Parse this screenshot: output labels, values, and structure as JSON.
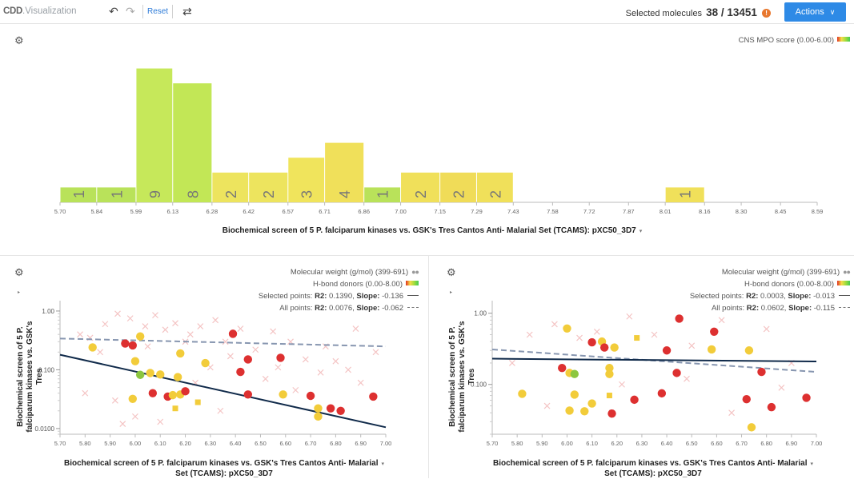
{
  "app": {
    "logo_bold": "CDD",
    "logo_rest": ".Visualization",
    "reset_label": "Reset",
    "selected_label": "Selected molecules",
    "selected_count": "38 / 13451",
    "warning_icon": "!",
    "actions_label": "Actions",
    "actions_chevron": "∨"
  },
  "icons": {
    "undo": "↶",
    "redo": "↷",
    "swap": "⇄",
    "gear": "⚙",
    "expand": "↗",
    "caret": "▾",
    "right_caret": "▸"
  },
  "histogram": {
    "legend": "CNS MPO score (0.00-6.00)",
    "x_title": "Biochemical screen of 5 P. falciparum kinases vs. GSK's Tres Cantos Anti- Malarial Set (TCAMS): pXC50_3D7"
  },
  "scatter_left": {
    "legend_mw": "Molecular weight (g/mol) (399-691)",
    "legend_hbd": "H-bond donors (0.00-8.00)",
    "legend_selected_prefix": "Selected points:",
    "legend_selected_r2": "R2:",
    "legend_selected_r2_val": "0.1390,",
    "legend_selected_slope": "Slope:",
    "legend_selected_slope_val": "-0.136",
    "legend_all_prefix": "All points:",
    "legend_all_r2": "R2:",
    "legend_all_r2_val": "0.0076,",
    "legend_all_slope": "Slope:",
    "legend_all_slope_val": "-0.062",
    "x_title_1": "Biochemical screen of 5 P. falciparum kinases vs. GSK's Tres Cantos Anti- Malarial",
    "x_title_2": "Set (TCAMS): pXC50_3D7",
    "y_title_1": "Biochemical screen of 5 P.",
    "y_title_2": "falciparum kinases vs. GSK's Tres"
  },
  "scatter_right": {
    "legend_mw": "Molecular weight (g/mol) (399-691)",
    "legend_hbd": "H-bond donors (0.00-8.00)",
    "legend_selected_prefix": "Selected points:",
    "legend_selected_r2": "R2:",
    "legend_selected_r2_val": "0.0003,",
    "legend_selected_slope": "Slope:",
    "legend_selected_slope_val": "-0.013",
    "legend_all_prefix": "All points:",
    "legend_all_r2": "R2:",
    "legend_all_r2_val": "0.0602,",
    "legend_all_slope": "Slope:",
    "legend_all_slope_val": "-0.115",
    "x_title_1": "Biochemical screen of 5 P. falciparum kinases vs. GSK's Tres Cantos Anti- Malarial",
    "x_title_2": "Set (TCAMS): pXC50_3D7",
    "y_title_1": "Biochemical screen of 5 P.",
    "y_title_2": "falciparum kinases vs. GSK's Tres"
  },
  "chart_data": [
    {
      "type": "bar",
      "xlim": [
        5.7,
        8.59
      ],
      "x_ticks": [
        "5.70",
        "5.84",
        "5.99",
        "6.13",
        "6.28",
        "6.42",
        "6.57",
        "6.71",
        "6.86",
        "7.00",
        "7.15",
        "7.29",
        "7.43",
        "7.58",
        "7.72",
        "7.87",
        "8.01",
        "8.16",
        "8.30",
        "8.45",
        "8.59"
      ],
      "bins": [
        {
          "from": 5.7,
          "to": 5.84,
          "count": 1,
          "color": "#b9e25a"
        },
        {
          "from": 5.84,
          "to": 5.99,
          "count": 1,
          "color": "#b9e25a"
        },
        {
          "from": 5.99,
          "to": 6.13,
          "count": 9,
          "color": "#c6e85a"
        },
        {
          "from": 6.13,
          "to": 6.28,
          "count": 8,
          "color": "#c2e756"
        },
        {
          "from": 6.28,
          "to": 6.42,
          "count": 2,
          "color": "#ede45e"
        },
        {
          "from": 6.42,
          "to": 6.57,
          "count": 2,
          "color": "#ede45e"
        },
        {
          "from": 6.57,
          "to": 6.71,
          "count": 3,
          "color": "#f0e45c"
        },
        {
          "from": 6.71,
          "to": 6.86,
          "count": 4,
          "color": "#f0e05a"
        },
        {
          "from": 6.86,
          "to": 7.0,
          "count": 1,
          "color": "#b9e25a"
        },
        {
          "from": 7.0,
          "to": 7.15,
          "count": 2,
          "color": "#f0e05a"
        },
        {
          "from": 7.15,
          "to": 7.29,
          "count": 2,
          "color": "#f0dc58"
        },
        {
          "from": 7.29,
          "to": 7.43,
          "count": 2,
          "color": "#f0e05a"
        },
        {
          "from": 8.01,
          "to": 8.16,
          "count": 1,
          "color": "#f0e05a"
        }
      ]
    },
    {
      "type": "scatter",
      "xlim": [
        5.7,
        7.0
      ],
      "ylim": [
        0.008,
        1.5
      ],
      "y_scale": "log",
      "x_ticks": [
        "5.70",
        "5.80",
        "5.90",
        "6.00",
        "6.10",
        "6.20",
        "6.30",
        "6.40",
        "6.50",
        "6.60",
        "6.70",
        "6.80",
        "6.90",
        "7.00"
      ],
      "y_ticks": [
        {
          "v": 1.0,
          "label": "1.00"
        },
        {
          "v": 0.1,
          "label": "0.100"
        },
        {
          "v": 0.01,
          "label": "0.0100"
        }
      ],
      "selected_fit": {
        "from": [
          5.7,
          0.18
        ],
        "to": [
          7.0,
          0.0105
        ]
      },
      "all_fit": {
        "from": [
          5.7,
          0.34
        ],
        "to": [
          7.0,
          0.25
        ]
      },
      "points": [
        {
          "x": 5.83,
          "y": 0.24,
          "c": "#f2cc3a",
          "s": "circle"
        },
        {
          "x": 5.96,
          "y": 0.28,
          "c": "#dd3030",
          "s": "circle"
        },
        {
          "x": 5.99,
          "y": 0.26,
          "c": "#dd3030",
          "s": "circle"
        },
        {
          "x": 6.02,
          "y": 0.37,
          "c": "#f2cc3a",
          "s": "circle"
        },
        {
          "x": 6.0,
          "y": 0.14,
          "c": "#f2cc3a",
          "s": "circle"
        },
        {
          "x": 6.02,
          "y": 0.082,
          "c": "#8cc63f",
          "s": "circle"
        },
        {
          "x": 6.06,
          "y": 0.088,
          "c": "#f2cc3a",
          "s": "circle"
        },
        {
          "x": 6.1,
          "y": 0.083,
          "c": "#f2cc3a",
          "s": "circle"
        },
        {
          "x": 5.99,
          "y": 0.032,
          "c": "#f2cc3a",
          "s": "circle"
        },
        {
          "x": 6.07,
          "y": 0.04,
          "c": "#dd3030",
          "s": "circle"
        },
        {
          "x": 6.13,
          "y": 0.035,
          "c": "#dd3030",
          "s": "circle"
        },
        {
          "x": 6.15,
          "y": 0.037,
          "c": "#f2cc3a",
          "s": "circle"
        },
        {
          "x": 6.18,
          "y": 0.038,
          "c": "#f2cc3a",
          "s": "circle"
        },
        {
          "x": 6.17,
          "y": 0.075,
          "c": "#f2cc3a",
          "s": "circle"
        },
        {
          "x": 6.18,
          "y": 0.19,
          "c": "#f2cc3a",
          "s": "circle"
        },
        {
          "x": 6.2,
          "y": 0.043,
          "c": "#dd3030",
          "s": "circle"
        },
        {
          "x": 6.16,
          "y": 0.022,
          "c": "#f2cc3a",
          "s": "square"
        },
        {
          "x": 6.25,
          "y": 0.028,
          "c": "#f2cc3a",
          "s": "square"
        },
        {
          "x": 6.28,
          "y": 0.13,
          "c": "#f2cc3a",
          "s": "circle"
        },
        {
          "x": 6.39,
          "y": 0.41,
          "c": "#dd3030",
          "s": "circle"
        },
        {
          "x": 6.45,
          "y": 0.15,
          "c": "#dd3030",
          "s": "circle"
        },
        {
          "x": 6.42,
          "y": 0.092,
          "c": "#dd3030",
          "s": "circle"
        },
        {
          "x": 6.45,
          "y": 0.038,
          "c": "#dd3030",
          "s": "circle"
        },
        {
          "x": 6.58,
          "y": 0.16,
          "c": "#dd3030",
          "s": "circle"
        },
        {
          "x": 6.59,
          "y": 0.038,
          "c": "#f2cc3a",
          "s": "circle"
        },
        {
          "x": 6.7,
          "y": 0.036,
          "c": "#dd3030",
          "s": "circle"
        },
        {
          "x": 6.73,
          "y": 0.022,
          "c": "#f2cc3a",
          "s": "circle"
        },
        {
          "x": 6.73,
          "y": 0.016,
          "c": "#f2cc3a",
          "s": "circle"
        },
        {
          "x": 6.78,
          "y": 0.022,
          "c": "#dd3030",
          "s": "circle"
        },
        {
          "x": 6.82,
          "y": 0.02,
          "c": "#dd3030",
          "s": "circle"
        },
        {
          "x": 6.95,
          "y": 0.035,
          "c": "#dd3030",
          "s": "circle"
        }
      ],
      "background_points": [
        {
          "x": 5.78,
          "y": 0.4
        },
        {
          "x": 5.82,
          "y": 0.35
        },
        {
          "x": 5.88,
          "y": 0.6
        },
        {
          "x": 5.93,
          "y": 0.9
        },
        {
          "x": 5.98,
          "y": 0.75
        },
        {
          "x": 6.04,
          "y": 0.55
        },
        {
          "x": 6.08,
          "y": 0.85
        },
        {
          "x": 6.12,
          "y": 0.48
        },
        {
          "x": 6.16,
          "y": 0.62
        },
        {
          "x": 6.22,
          "y": 0.4
        },
        {
          "x": 6.26,
          "y": 0.55
        },
        {
          "x": 6.32,
          "y": 0.7
        },
        {
          "x": 6.36,
          "y": 0.3
        },
        {
          "x": 6.42,
          "y": 0.5
        },
        {
          "x": 6.48,
          "y": 0.22
        },
        {
          "x": 6.55,
          "y": 0.45
        },
        {
          "x": 6.62,
          "y": 0.3
        },
        {
          "x": 6.68,
          "y": 0.15
        },
        {
          "x": 6.76,
          "y": 0.25
        },
        {
          "x": 6.85,
          "y": 0.1
        },
        {
          "x": 5.8,
          "y": 0.04
        },
        {
          "x": 5.92,
          "y": 0.03
        },
        {
          "x": 5.95,
          "y": 0.012
        },
        {
          "x": 6.1,
          "y": 0.013
        },
        {
          "x": 6.24,
          "y": 0.06
        },
        {
          "x": 6.3,
          "y": 0.11
        },
        {
          "x": 6.34,
          "y": 0.02
        },
        {
          "x": 6.52,
          "y": 0.07
        },
        {
          "x": 6.64,
          "y": 0.045
        },
        {
          "x": 6.8,
          "y": 0.14
        },
        {
          "x": 6.9,
          "y": 0.06
        },
        {
          "x": 6.96,
          "y": 0.2
        },
        {
          "x": 5.86,
          "y": 0.2
        },
        {
          "x": 6.05,
          "y": 0.25
        },
        {
          "x": 6.2,
          "y": 0.3
        },
        {
          "x": 6.38,
          "y": 0.17
        },
        {
          "x": 6.57,
          "y": 0.11
        },
        {
          "x": 6.74,
          "y": 0.09
        },
        {
          "x": 6.88,
          "y": 0.5
        },
        {
          "x": 6.0,
          "y": 0.016
        }
      ]
    },
    {
      "type": "scatter",
      "xlim": [
        5.7,
        7.0
      ],
      "ylim": [
        0.02,
        1.5
      ],
      "y_scale": "log",
      "x_ticks": [
        "5.70",
        "5.80",
        "5.90",
        "6.00",
        "6.10",
        "6.20",
        "6.30",
        "6.40",
        "6.50",
        "6.60",
        "6.70",
        "6.80",
        "6.90",
        "7.00"
      ],
      "y_ticks": [
        {
          "v": 1.0,
          "label": "1.00"
        },
        {
          "v": 0.1,
          "label": "0.100"
        }
      ],
      "selected_fit": {
        "from": [
          5.7,
          0.23
        ],
        "to": [
          7.0,
          0.21
        ]
      },
      "all_fit": {
        "from": [
          5.7,
          0.31
        ],
        "to": [
          7.0,
          0.15
        ]
      },
      "points": [
        {
          "x": 5.82,
          "y": 0.074,
          "c": "#f2cc3a",
          "s": "circle"
        },
        {
          "x": 5.98,
          "y": 0.17,
          "c": "#dd3030",
          "s": "circle"
        },
        {
          "x": 6.0,
          "y": 0.61,
          "c": "#f2cc3a",
          "s": "circle"
        },
        {
          "x": 6.01,
          "y": 0.145,
          "c": "#f2cc3a",
          "s": "circle"
        },
        {
          "x": 6.03,
          "y": 0.14,
          "c": "#8cc63f",
          "s": "circle"
        },
        {
          "x": 6.03,
          "y": 0.072,
          "c": "#f2cc3a",
          "s": "circle"
        },
        {
          "x": 6.01,
          "y": 0.043,
          "c": "#f2cc3a",
          "s": "circle"
        },
        {
          "x": 6.07,
          "y": 0.042,
          "c": "#f2cc3a",
          "s": "circle"
        },
        {
          "x": 6.1,
          "y": 0.054,
          "c": "#f2cc3a",
          "s": "circle"
        },
        {
          "x": 6.1,
          "y": 0.39,
          "c": "#dd3030",
          "s": "circle"
        },
        {
          "x": 6.14,
          "y": 0.4,
          "c": "#f2cc3a",
          "s": "circle"
        },
        {
          "x": 6.15,
          "y": 0.33,
          "c": "#dd3030",
          "s": "circle"
        },
        {
          "x": 6.17,
          "y": 0.17,
          "c": "#f2cc3a",
          "s": "circle"
        },
        {
          "x": 6.17,
          "y": 0.14,
          "c": "#f2cc3a",
          "s": "circle"
        },
        {
          "x": 6.17,
          "y": 0.07,
          "c": "#f2cc3a",
          "s": "square"
        },
        {
          "x": 6.18,
          "y": 0.039,
          "c": "#dd3030",
          "s": "circle"
        },
        {
          "x": 6.19,
          "y": 0.33,
          "c": "#f2cc3a",
          "s": "circle"
        },
        {
          "x": 6.27,
          "y": 0.061,
          "c": "#dd3030",
          "s": "circle"
        },
        {
          "x": 6.28,
          "y": 0.45,
          "c": "#f2cc3a",
          "s": "square"
        },
        {
          "x": 6.38,
          "y": 0.075,
          "c": "#dd3030",
          "s": "circle"
        },
        {
          "x": 6.4,
          "y": 0.3,
          "c": "#dd3030",
          "s": "circle"
        },
        {
          "x": 6.44,
          "y": 0.145,
          "c": "#dd3030",
          "s": "circle"
        },
        {
          "x": 6.45,
          "y": 0.84,
          "c": "#dd3030",
          "s": "circle"
        },
        {
          "x": 6.58,
          "y": 0.31,
          "c": "#f2cc3a",
          "s": "circle"
        },
        {
          "x": 6.59,
          "y": 0.55,
          "c": "#dd3030",
          "s": "circle"
        },
        {
          "x": 6.72,
          "y": 0.062,
          "c": "#dd3030",
          "s": "circle"
        },
        {
          "x": 6.73,
          "y": 0.3,
          "c": "#f2cc3a",
          "s": "circle"
        },
        {
          "x": 6.74,
          "y": 0.025,
          "c": "#f2cc3a",
          "s": "circle"
        },
        {
          "x": 6.78,
          "y": 0.15,
          "c": "#dd3030",
          "s": "circle"
        },
        {
          "x": 6.82,
          "y": 0.048,
          "c": "#dd3030",
          "s": "circle"
        },
        {
          "x": 6.96,
          "y": 0.065,
          "c": "#dd3030",
          "s": "circle"
        }
      ],
      "background_points": [
        {
          "x": 5.85,
          "y": 0.5
        },
        {
          "x": 5.95,
          "y": 0.7
        },
        {
          "x": 6.05,
          "y": 0.45
        },
        {
          "x": 6.12,
          "y": 0.55
        },
        {
          "x": 6.25,
          "y": 0.9
        },
        {
          "x": 6.35,
          "y": 0.5
        },
        {
          "x": 6.5,
          "y": 0.35
        },
        {
          "x": 6.62,
          "y": 0.8
        },
        {
          "x": 6.8,
          "y": 0.6
        },
        {
          "x": 6.9,
          "y": 0.2
        },
        {
          "x": 5.78,
          "y": 0.2
        },
        {
          "x": 5.92,
          "y": 0.05
        },
        {
          "x": 6.22,
          "y": 0.1
        },
        {
          "x": 6.48,
          "y": 0.12
        },
        {
          "x": 6.66,
          "y": 0.04
        },
        {
          "x": 6.86,
          "y": 0.09
        }
      ]
    }
  ]
}
